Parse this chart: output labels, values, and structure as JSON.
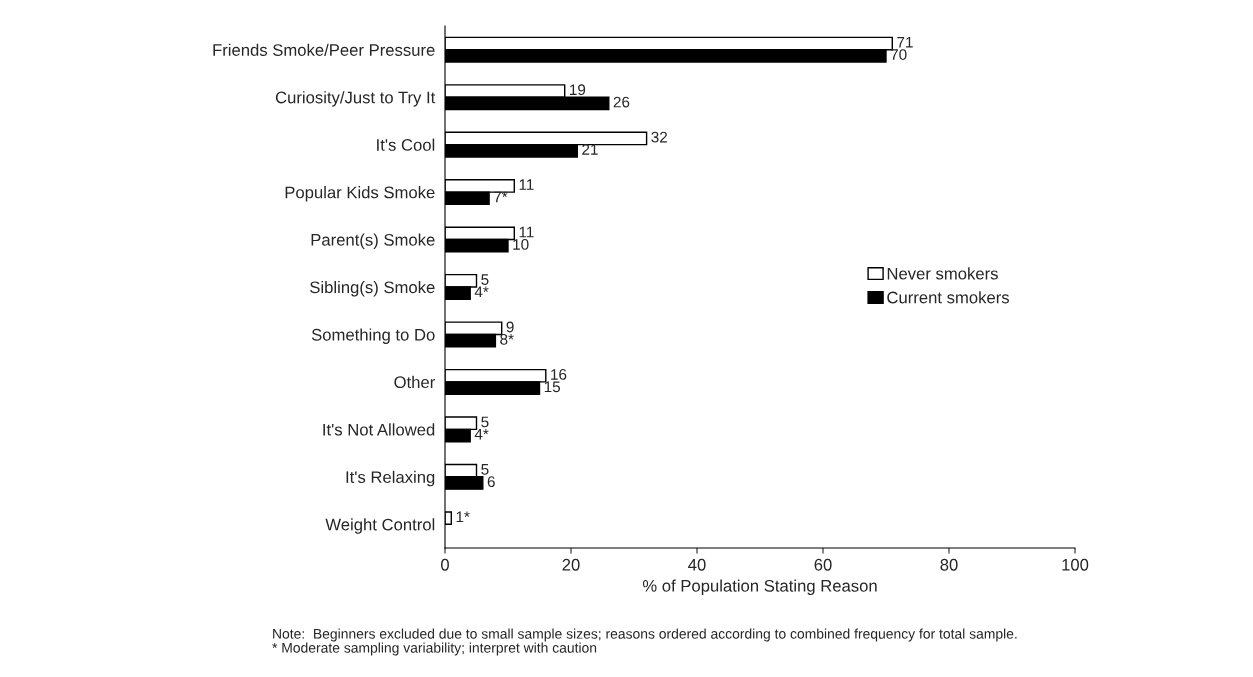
{
  "chart_data": {
    "type": "bar",
    "orientation": "horizontal",
    "xlabel": "% of Population Stating Reason",
    "categories": [
      "Friends Smoke/Peer Pressure",
      "Curiosity/Just to Try It",
      "It's Cool",
      "Popular Kids Smoke",
      "Parent(s) Smoke",
      "Sibling(s) Smoke",
      "Something to Do",
      "Other",
      "It's Not Allowed",
      "It's Relaxing",
      "Weight Control"
    ],
    "series": [
      {
        "name": "Never smokers",
        "color": "#ffffff",
        "values": [
          71,
          19,
          32,
          11,
          11,
          5,
          9,
          16,
          5,
          5,
          1
        ],
        "value_labels": [
          "71",
          "19",
          "32",
          "11",
          "11",
          "5",
          "9",
          "16",
          "5",
          "5",
          "1*"
        ]
      },
      {
        "name": "Current smokers",
        "color": "#000000",
        "values": [
          70,
          26,
          21,
          7,
          10,
          4,
          8,
          15,
          4,
          6,
          null
        ],
        "value_labels": [
          "70",
          "26",
          "21",
          "7*",
          "10",
          "4*",
          "8*",
          "15",
          "4*",
          "6",
          null
        ]
      }
    ],
    "xlim": [
      0,
      100
    ],
    "xticks": [
      0,
      20,
      40,
      60,
      80,
      100
    ],
    "grid": false,
    "legend": "right",
    "annotations": [
      "Note:  Beginners excluded due to small sample sizes; reasons ordered according to combined frequency for total sample.",
      "* Moderate sampling variability; interpret with caution"
    ]
  }
}
